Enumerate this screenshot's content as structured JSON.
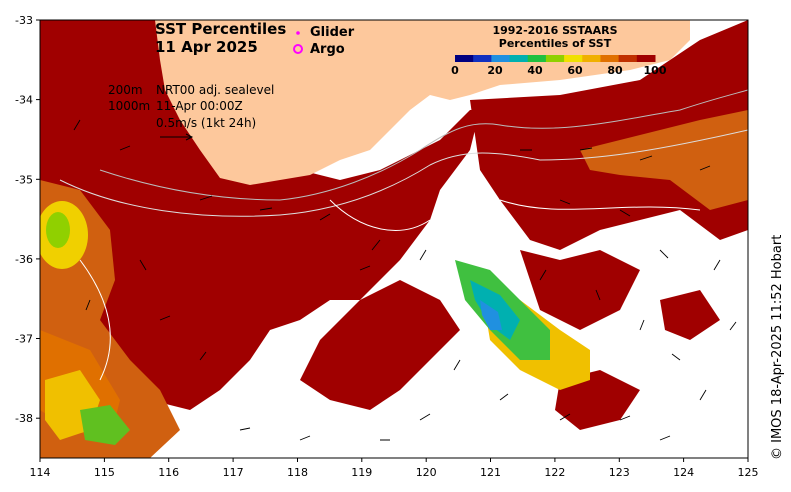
{
  "title": {
    "line1": "SST Percentiles",
    "line2": "11 Apr 2025"
  },
  "markers": {
    "glider": "Glider",
    "argo": "Argo",
    "glider_color": "#ff00ff",
    "argo_color": "#ff00ff"
  },
  "info": {
    "depth1": "200m",
    "depth2": "1000m",
    "product": "NRT00 adj. sealevel",
    "time": "11-Apr 00:00Z",
    "scale": "0.5m/s (1kt 24h)"
  },
  "colorbar": {
    "title1": "1992-2016 SSTAARS",
    "title2": "Percentiles of SST",
    "ticks": [
      "0",
      "20",
      "40",
      "60",
      "80",
      "100"
    ],
    "colors": [
      "#000080",
      "#1030c0",
      "#2090e0",
      "#00b0b0",
      "#20c040",
      "#90d000",
      "#f0e000",
      "#f0b000",
      "#e07000",
      "#c03000",
      "#a00000"
    ]
  },
  "axes": {
    "x_ticks": [
      "114",
      "115",
      "116",
      "117",
      "118",
      "119",
      "120",
      "121",
      "122",
      "123",
      "124",
      "125"
    ],
    "y_ticks": [
      "-33",
      "-34",
      "-35",
      "-36",
      "-37",
      "-38"
    ]
  },
  "copyright": "© IMOS 18-Apr-2025 11:52 Hobart",
  "colors": {
    "land": "#fdc89c",
    "warm": "#a00000",
    "orange": "#d06010",
    "cloud": "#ffffff"
  }
}
